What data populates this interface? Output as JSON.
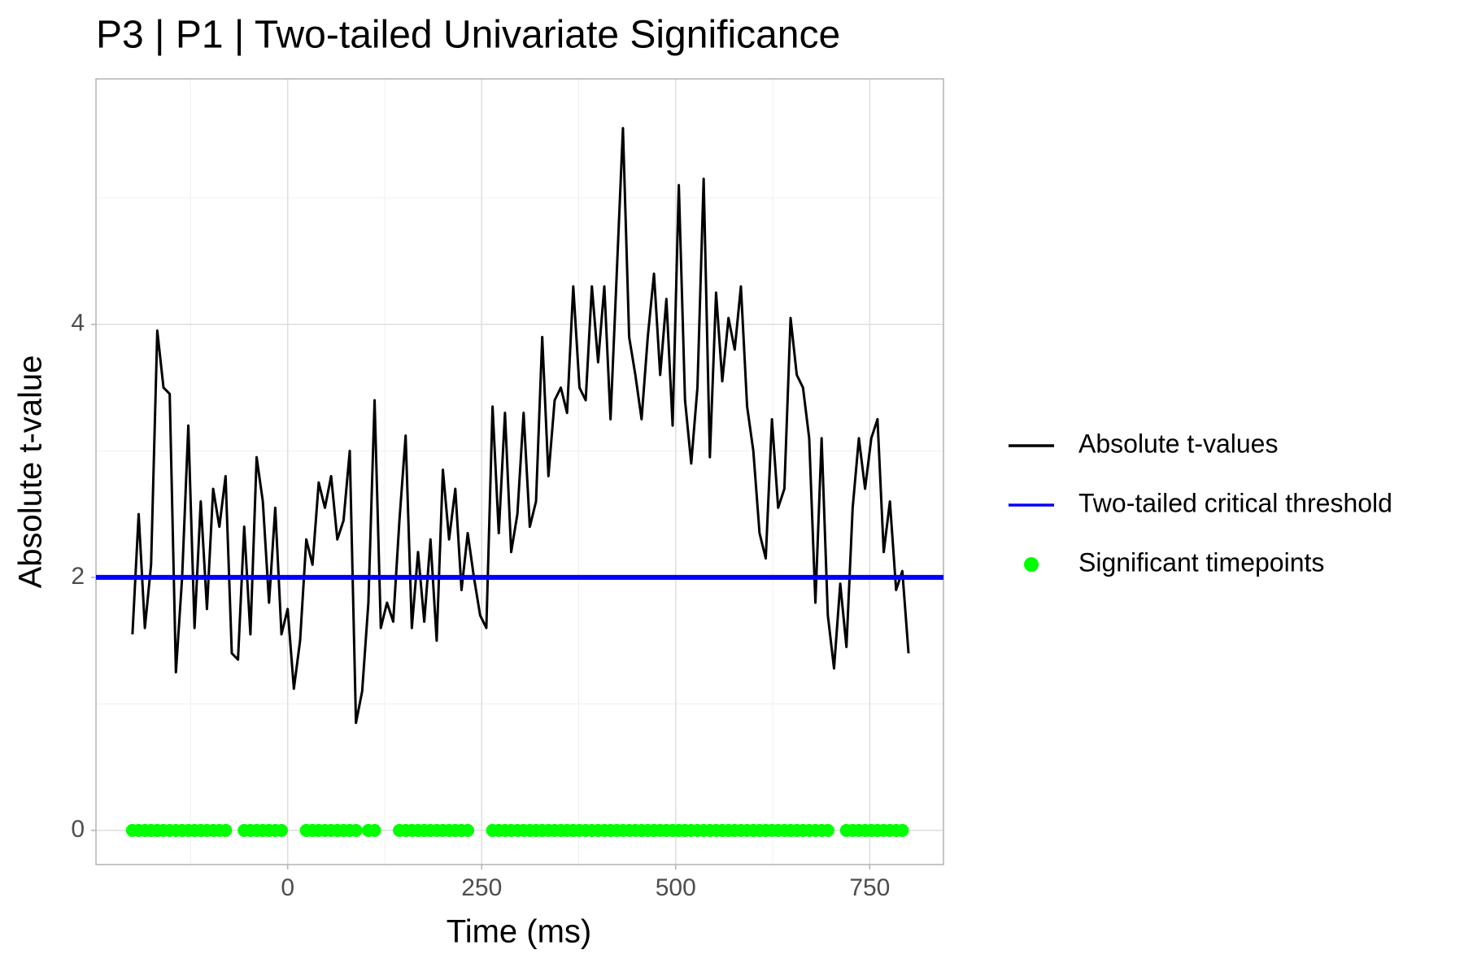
{
  "chart_data": {
    "type": "line",
    "title": "P3 | P1 | Two-tailed Univariate Significance",
    "x_label": "Time (ms)",
    "y_label": "Absolute t-value",
    "xlim": [
      -247,
      845
    ],
    "ylim": [
      -0.27,
      5.94
    ],
    "xticks": [
      0,
      250,
      500,
      750
    ],
    "yticks": [
      0,
      2,
      4
    ],
    "grid": true,
    "legend": "right",
    "series": [
      {
        "name": "Absolute t-values",
        "color": "#000000",
        "x": [
          -200,
          -192,
          -184,
          -176,
          -168,
          -160,
          -152,
          -144,
          -136,
          -128,
          -120,
          -112,
          -104,
          -96,
          -88,
          -80,
          -72,
          -64,
          -56,
          -48,
          -40,
          -32,
          -24,
          -16,
          -8,
          0,
          8,
          16,
          24,
          32,
          40,
          48,
          56,
          64,
          72,
          80,
          88,
          96,
          104,
          112,
          120,
          128,
          136,
          144,
          152,
          160,
          168,
          176,
          184,
          192,
          200,
          208,
          216,
          224,
          232,
          240,
          248,
          256,
          264,
          272,
          280,
          288,
          296,
          304,
          312,
          320,
          328,
          336,
          344,
          352,
          360,
          368,
          376,
          384,
          392,
          400,
          408,
          416,
          424,
          432,
          440,
          448,
          456,
          464,
          472,
          480,
          488,
          496,
          504,
          512,
          520,
          528,
          536,
          544,
          552,
          560,
          568,
          576,
          584,
          592,
          600,
          608,
          616,
          624,
          632,
          640,
          648,
          656,
          664,
          672,
          680,
          688,
          696,
          704,
          712,
          720,
          728,
          736,
          744,
          752,
          760,
          768,
          776,
          784,
          792,
          800
        ],
        "values": [
          1.55,
          2.5,
          1.6,
          2.1,
          3.95,
          3.5,
          3.45,
          1.25,
          2.0,
          3.2,
          1.6,
          2.6,
          1.75,
          2.7,
          2.4,
          2.8,
          1.4,
          1.35,
          2.4,
          1.55,
          2.95,
          2.6,
          1.8,
          2.55,
          1.55,
          1.75,
          1.12,
          1.5,
          2.3,
          2.1,
          2.75,
          2.55,
          2.8,
          2.3,
          2.45,
          3.0,
          0.85,
          1.1,
          1.8,
          3.4,
          1.6,
          1.8,
          1.65,
          2.45,
          3.12,
          1.6,
          2.2,
          1.65,
          2.3,
          1.5,
          2.85,
          2.3,
          2.7,
          1.9,
          2.35,
          2.0,
          1.7,
          1.6,
          3.35,
          2.35,
          3.3,
          2.2,
          2.5,
          3.3,
          2.4,
          2.6,
          3.9,
          2.8,
          3.4,
          3.5,
          3.3,
          4.3,
          3.5,
          3.4,
          4.3,
          3.7,
          4.3,
          3.25,
          4.4,
          5.55,
          3.9,
          3.6,
          3.25,
          3.9,
          4.4,
          3.6,
          4.2,
          3.2,
          5.1,
          3.4,
          2.9,
          3.5,
          5.15,
          2.95,
          4.25,
          3.55,
          4.05,
          3.8,
          4.3,
          3.35,
          3.0,
          2.35,
          2.15,
          3.25,
          2.55,
          2.7,
          4.05,
          3.6,
          3.5,
          3.1,
          1.8,
          3.1,
          1.7,
          1.28,
          1.95,
          1.45,
          2.55,
          3.1,
          2.7,
          3.1,
          3.25,
          2.2,
          2.6,
          1.9,
          2.05,
          1.4
        ]
      },
      {
        "name": "Two-tailed critical threshold",
        "color": "#0000ff",
        "yintercept": 2
      },
      {
        "name": "Significant timepoints",
        "color": "#00ff00",
        "x": [
          -200,
          -192,
          -184,
          -176,
          -168,
          -160,
          -152,
          -144,
          -136,
          -128,
          -120,
          -112,
          -104,
          -96,
          -88,
          -80,
          -56,
          -48,
          -40,
          -32,
          -24,
          -16,
          -8,
          24,
          32,
          40,
          48,
          56,
          64,
          72,
          80,
          88,
          104,
          112,
          144,
          152,
          160,
          168,
          176,
          184,
          192,
          200,
          208,
          216,
          224,
          232,
          264,
          272,
          280,
          288,
          296,
          304,
          312,
          320,
          328,
          336,
          344,
          352,
          360,
          368,
          376,
          384,
          392,
          400,
          408,
          416,
          424,
          432,
          440,
          448,
          456,
          464,
          472,
          480,
          488,
          496,
          504,
          512,
          520,
          528,
          536,
          544,
          552,
          560,
          568,
          576,
          584,
          592,
          600,
          608,
          616,
          624,
          632,
          640,
          648,
          656,
          664,
          672,
          680,
          688,
          696,
          720,
          728,
          736,
          744,
          752,
          760,
          768,
          776,
          784,
          792
        ],
        "values": [
          0,
          0,
          0,
          0,
          0,
          0,
          0,
          0,
          0,
          0,
          0,
          0,
          0,
          0,
          0,
          0,
          0,
          0,
          0,
          0,
          0,
          0,
          0,
          0,
          0,
          0,
          0,
          0,
          0,
          0,
          0,
          0,
          0,
          0,
          0,
          0,
          0,
          0,
          0,
          0,
          0,
          0,
          0,
          0,
          0,
          0,
          0,
          0,
          0,
          0,
          0,
          0,
          0,
          0,
          0,
          0,
          0,
          0,
          0,
          0,
          0,
          0,
          0,
          0,
          0,
          0,
          0,
          0,
          0,
          0,
          0,
          0,
          0,
          0,
          0,
          0,
          0,
          0,
          0,
          0,
          0,
          0,
          0,
          0,
          0,
          0,
          0,
          0,
          0,
          0,
          0,
          0,
          0,
          0,
          0,
          0,
          0,
          0,
          0,
          0,
          0,
          0,
          0,
          0,
          0,
          0,
          0,
          0,
          0,
          0,
          0
        ]
      }
    ]
  }
}
